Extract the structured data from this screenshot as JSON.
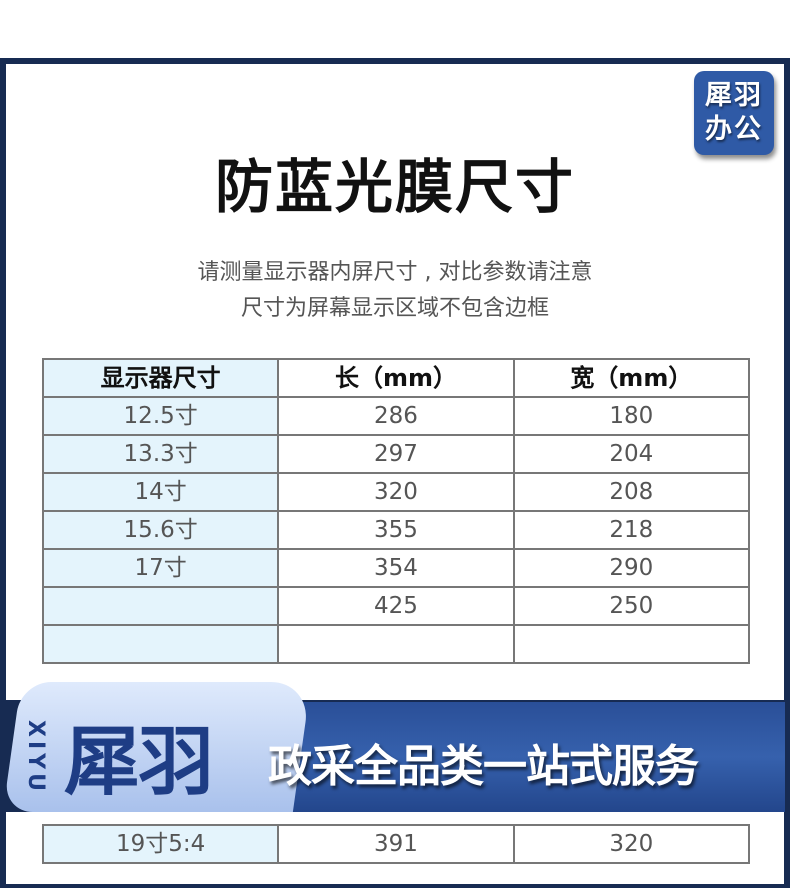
{
  "logo": {
    "line1": "犀羽",
    "line2": "办公"
  },
  "title": "防蓝光膜尺寸",
  "subtitle": [
    "请测量显示器内屏尺寸 , 对比参数请注意",
    "尺寸为屏幕显示区域不包含边框"
  ],
  "table": {
    "headers": [
      "显示器尺寸",
      "长（mm）",
      "宽（mm）"
    ],
    "rows": [
      [
        "12.5寸",
        "286",
        "180"
      ],
      [
        "13.3寸",
        "297",
        "204"
      ],
      [
        "14寸",
        "320",
        "208"
      ],
      [
        "15.6寸",
        "355",
        "218"
      ],
      [
        "17寸",
        "354",
        "290"
      ],
      [
        "",
        "425",
        "250"
      ],
      [
        "",
        "",
        ""
      ],
      [
        "19寸5:4",
        "391",
        "320"
      ]
    ]
  },
  "banner": {
    "latin": "XIYU",
    "brand": "犀羽",
    "slogan": "政采全品类一站式服务"
  },
  "colors": {
    "frame": "#172b52",
    "accent": "#2f5aa6",
    "first_column": "#e4f4fc"
  }
}
